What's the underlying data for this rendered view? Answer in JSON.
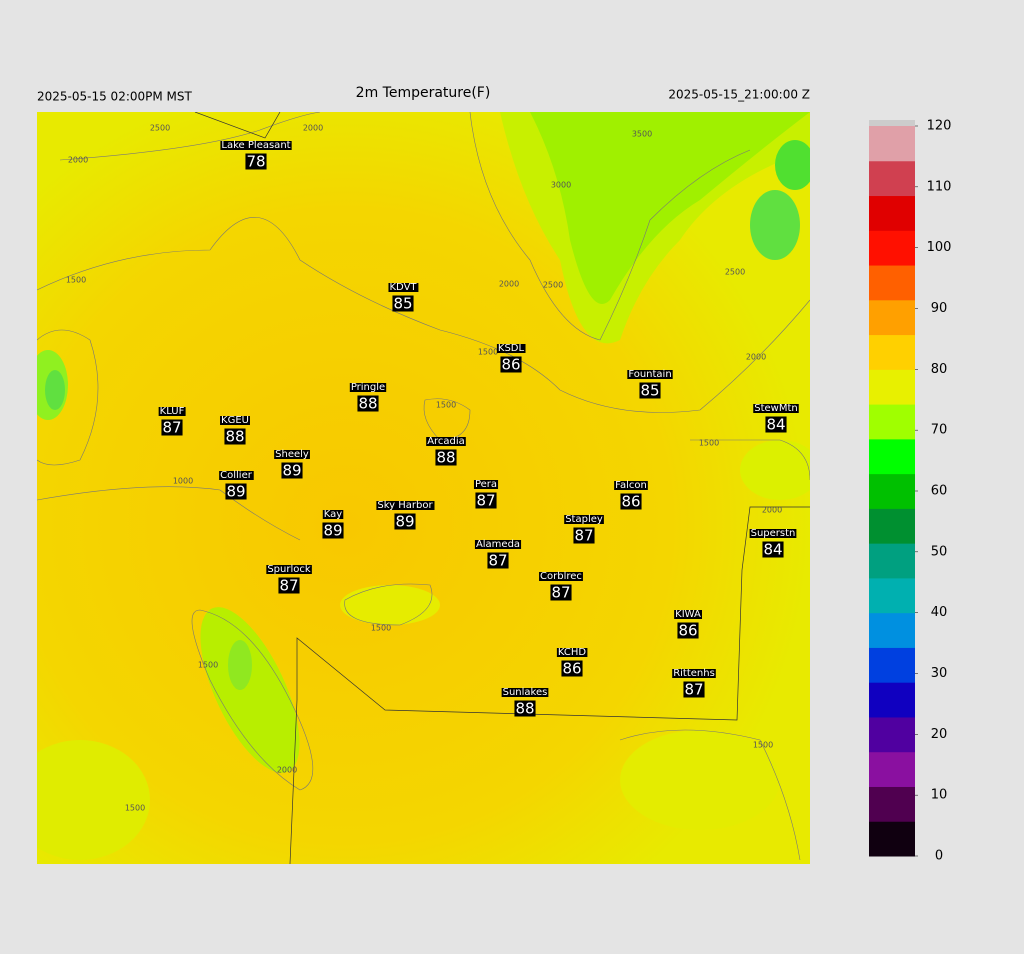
{
  "header": {
    "left": "2025-05-15 02:00PM MST",
    "title": "2m Temperature(F)",
    "right": "2025-05-15_21:00:00 Z"
  },
  "stations": [
    {
      "name": "Lake Pleasant",
      "value": 78
    },
    {
      "name": "KDVT",
      "value": 85
    },
    {
      "name": "KSDL",
      "value": 86
    },
    {
      "name": "Fountain",
      "value": 85
    },
    {
      "name": "StewMtn",
      "value": 84
    },
    {
      "name": "KLUF",
      "value": 87
    },
    {
      "name": "KGEU",
      "value": 88
    },
    {
      "name": "Pringle",
      "value": 88
    },
    {
      "name": "Arcadia",
      "value": 88
    },
    {
      "name": "Sheely",
      "value": 89
    },
    {
      "name": "Collier",
      "value": 89
    },
    {
      "name": "Pera",
      "value": 87
    },
    {
      "name": "Falcon",
      "value": 86
    },
    {
      "name": "Sky Harbor",
      "value": 89
    },
    {
      "name": "Kay",
      "value": 89
    },
    {
      "name": "Stapley",
      "value": 87
    },
    {
      "name": "Superstn",
      "value": 84
    },
    {
      "name": "Alameda",
      "value": 87
    },
    {
      "name": "Spurlock",
      "value": 87
    },
    {
      "name": "Corblrec",
      "value": 87
    },
    {
      "name": "KIWA",
      "value": 86
    },
    {
      "name": "KCHD",
      "value": 86
    },
    {
      "name": "Rittenhs",
      "value": 87
    },
    {
      "name": "Sunlakes",
      "value": 88
    }
  ],
  "contour_labels": [
    2500,
    2000,
    2000,
    3500,
    3000,
    2500,
    1500,
    2000,
    2500,
    1500,
    2000,
    1500,
    1500,
    1000,
    2000,
    1500,
    1500,
    2000,
    1500,
    1500
  ],
  "colorbar": {
    "range": [
      0,
      120
    ],
    "ticks": [
      0,
      10,
      20,
      30,
      40,
      50,
      60,
      70,
      80,
      90,
      100,
      110,
      120
    ],
    "colors": [
      "#100010",
      "#500050",
      "#8a10a0",
      "#5000a0",
      "#1000c0",
      "#0040e0",
      "#0090e0",
      "#00b0b0",
      "#00a080",
      "#009030",
      "#00c000",
      "#00ff00",
      "#a0ff00",
      "#e8f000",
      "#ffd000",
      "#ffa000",
      "#ff6000",
      "#ff1000",
      "#e00000",
      "#d04050",
      "#e0a0a8"
    ]
  }
}
